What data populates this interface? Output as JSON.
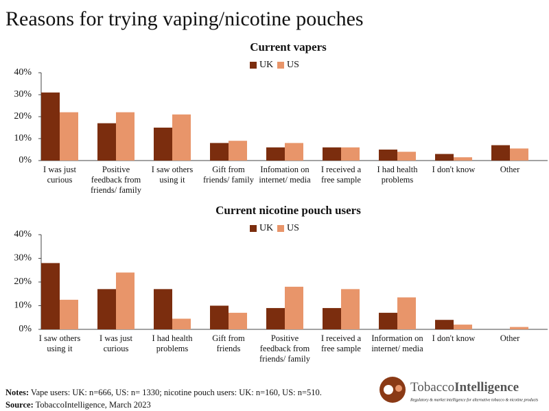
{
  "title": "Reasons for trying vaping/nicotine pouches",
  "chart_data": [
    {
      "type": "bar",
      "title": "Current vapers",
      "categories": [
        "I was just curious",
        "Positive feedback from friends/ family",
        "I saw others using it",
        "Gift from friends/ family",
        "Infomation on internet/ media",
        "I received a free sample",
        "I had health problems",
        "I don't know",
        "Other"
      ],
      "series": [
        {
          "name": "UK",
          "color": "#7b2d0e",
          "values": [
            31,
            17,
            15,
            8,
            6,
            6,
            5,
            3,
            7
          ]
        },
        {
          "name": "US",
          "color": "#e8956a",
          "values": [
            22,
            22,
            21,
            9,
            8,
            6,
            4,
            1.5,
            5.5
          ]
        }
      ],
      "ylim": [
        0,
        40
      ],
      "yticks": [
        {
          "value": 0,
          "label": "0%"
        },
        {
          "value": 10,
          "label": "10%"
        },
        {
          "value": 20,
          "label": "20%"
        },
        {
          "value": 30,
          "label": "30%"
        },
        {
          "value": 40,
          "label": "40%"
        }
      ],
      "grid": false,
      "legend": "top"
    },
    {
      "type": "bar",
      "title": "Current nicotine pouch users",
      "categories": [
        "I saw others using it",
        "I was just curious",
        "I had health problems",
        "Gift from friends",
        "Positive feedback from friends/ family",
        "I received a free sample",
        "Information on internet/ media",
        "I don't know",
        "Other"
      ],
      "series": [
        {
          "name": "UK",
          "color": "#7b2d0e",
          "values": [
            28,
            17,
            17,
            10,
            9,
            9,
            7,
            4,
            0
          ]
        },
        {
          "name": "US",
          "color": "#e8956a",
          "values": [
            12.5,
            24,
            4.5,
            7,
            18,
            17,
            13.5,
            2,
            1
          ]
        }
      ],
      "ylim": [
        0,
        40
      ],
      "yticks": [
        {
          "value": 0,
          "label": "0%"
        },
        {
          "value": 10,
          "label": "10%"
        },
        {
          "value": 20,
          "label": "20%"
        },
        {
          "value": 30,
          "label": "30%"
        },
        {
          "value": 40,
          "label": "40%"
        }
      ],
      "grid": false,
      "legend": "top"
    }
  ],
  "notes": {
    "label": "Notes:",
    "text": "Vape users: UK: n=666, US: n= 1330; nicotine pouch users: UK: n=160, US: n=510."
  },
  "source": {
    "label": "Source:",
    "text": "TobaccoIntelligence, March 2023"
  },
  "logo": {
    "name_part1": "Tobacco",
    "name_part2": "Intelligence",
    "tagline": "Regulatory & market intelligence for alternative tobacco & nicotine products"
  }
}
